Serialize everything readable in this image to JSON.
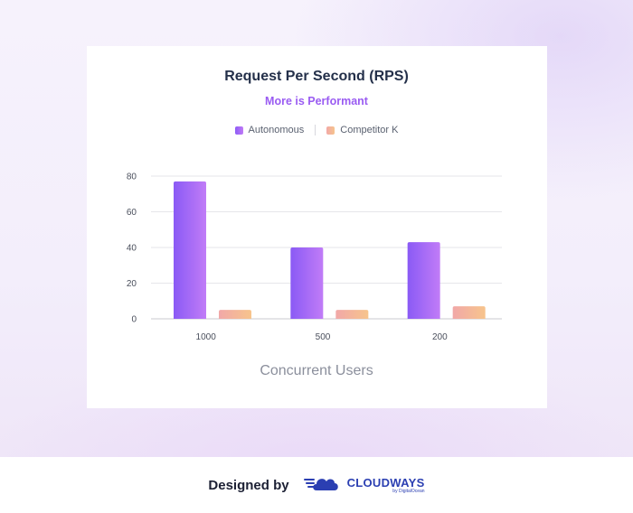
{
  "chart_data": {
    "type": "bar",
    "title": "Request Per Second (RPS)",
    "subtitle": "More is Performant",
    "xlabel": "Concurrent Users",
    "ylabel": "",
    "categories": [
      "1000",
      "500",
      "200"
    ],
    "series": [
      {
        "name": "Autonomous",
        "values": [
          77,
          40,
          43
        ]
      },
      {
        "name": "Competitor K",
        "values": [
          5,
          5,
          7
        ]
      }
    ],
    "ylim": [
      0,
      80
    ],
    "yticks": [
      "0",
      "20",
      "40",
      "60",
      "80"
    ],
    "grid": true,
    "legend_position": "top-center",
    "colors": {
      "autonomous": [
        "#8a5af5",
        "#c17cf7"
      ],
      "competitor": [
        "#f1a8a8",
        "#f7c48c"
      ]
    }
  },
  "footer": {
    "designed_by": "Designed by",
    "brand_name": "CLOUDWAYS",
    "brand_sub": "by DigitalOcean",
    "brand_icon": "cloud-icon"
  }
}
